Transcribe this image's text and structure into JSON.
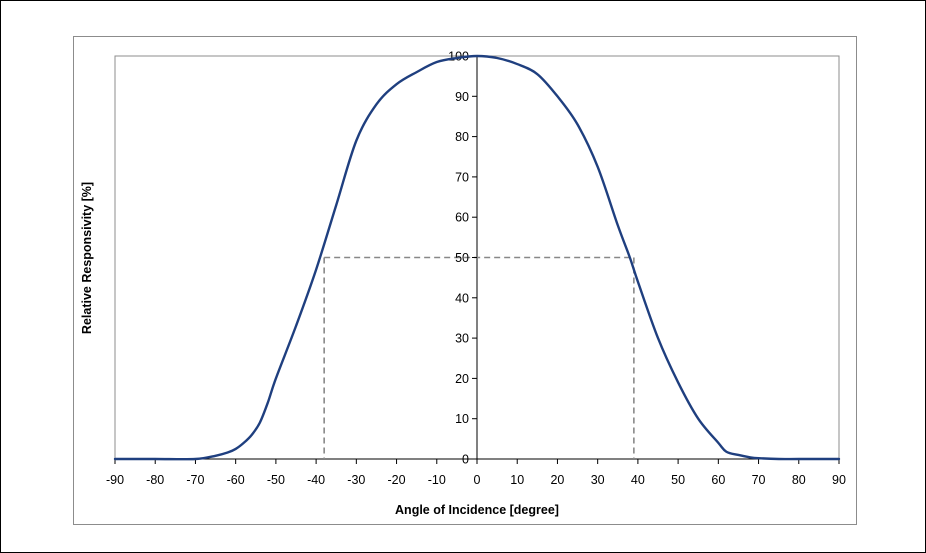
{
  "chart_data": {
    "type": "line",
    "xlabel": "Angle of Incidence [degree]",
    "ylabel": "Relative Responsivity [%]",
    "xlim": [
      -90,
      90
    ],
    "ylim": [
      0,
      100
    ],
    "x_ticks": [
      "-90",
      "-80",
      "-70",
      "-60",
      "-50",
      "-40",
      "-30",
      "-20",
      "-10",
      "0",
      "10",
      "20",
      "30",
      "40",
      "50",
      "60",
      "70",
      "80",
      "90"
    ],
    "y_ticks": [
      "0",
      "10",
      "20",
      "30",
      "40",
      "50",
      "60",
      "70",
      "80",
      "90",
      "100"
    ],
    "grid": false,
    "legend": "none",
    "series": [
      {
        "color": "#1f3f7f",
        "x": [
          -90,
          -80,
          -70,
          -65,
          -62,
          -60,
          -58,
          -56,
          -54,
          -52,
          -50,
          -45,
          -40,
          -35,
          -30,
          -25,
          -20,
          -15,
          -10,
          -5,
          0,
          5,
          10,
          15,
          20,
          25,
          30,
          35,
          38,
          40,
          45,
          50,
          55,
          60,
          62,
          65,
          68,
          70,
          75,
          80,
          90
        ],
        "y": [
          0,
          0,
          0,
          0.8,
          1.6,
          2.5,
          4,
          6,
          9,
          14,
          20,
          33,
          47,
          63,
          79,
          88,
          93,
          96,
          98.5,
          99.5,
          100,
          99.5,
          98,
          95.5,
          90,
          83,
          72.5,
          58,
          50,
          44,
          30,
          19,
          10,
          4,
          1.8,
          1,
          0.4,
          0.2,
          0,
          0,
          0
        ]
      }
    ],
    "reference_lines": {
      "level": 50,
      "x_left": -38,
      "x_right": 39,
      "color": "#888888"
    }
  }
}
